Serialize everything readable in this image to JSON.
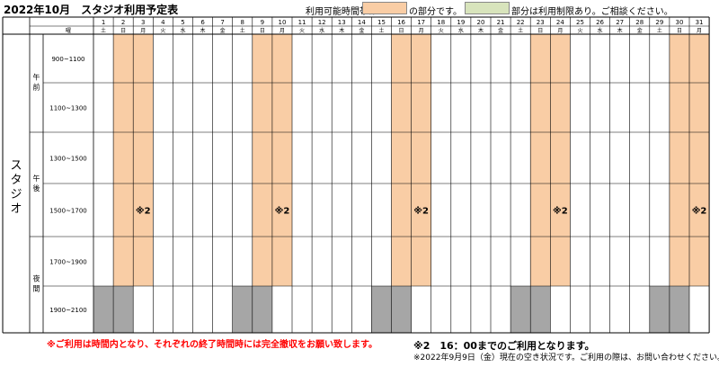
{
  "title": "2022年10月　スタジオ利用予定表",
  "legend": {
    "label_prefix": "利用可能時間帯は",
    "available_text": "の部分です。",
    "restricted_text": "部分は利用制限あり。ご相談ください。",
    "available_color": "#f9cda5",
    "restricted_color": "#d8e4bc"
  },
  "day_header_label": "曜",
  "days": [
    {
      "d": "1",
      "w": "土"
    },
    {
      "d": "2",
      "w": "日"
    },
    {
      "d": "3",
      "w": "月"
    },
    {
      "d": "4",
      "w": "火"
    },
    {
      "d": "5",
      "w": "水"
    },
    {
      "d": "6",
      "w": "木"
    },
    {
      "d": "7",
      "w": "金"
    },
    {
      "d": "8",
      "w": "土"
    },
    {
      "d": "9",
      "w": "日"
    },
    {
      "d": "10",
      "w": "月"
    },
    {
      "d": "11",
      "w": "火"
    },
    {
      "d": "12",
      "w": "水"
    },
    {
      "d": "13",
      "w": "木"
    },
    {
      "d": "14",
      "w": "金"
    },
    {
      "d": "15",
      "w": "土"
    },
    {
      "d": "16",
      "w": "日"
    },
    {
      "d": "17",
      "w": "月"
    },
    {
      "d": "18",
      "w": "火"
    },
    {
      "d": "19",
      "w": "水"
    },
    {
      "d": "20",
      "w": "木"
    },
    {
      "d": "21",
      "w": "金"
    },
    {
      "d": "22",
      "w": "土"
    },
    {
      "d": "23",
      "w": "日"
    },
    {
      "d": "24",
      "w": "月"
    },
    {
      "d": "25",
      "w": "火"
    },
    {
      "d": "26",
      "w": "水"
    },
    {
      "d": "27",
      "w": "木"
    },
    {
      "d": "28",
      "w": "金"
    },
    {
      "d": "29",
      "w": "土"
    },
    {
      "d": "30",
      "w": "日"
    },
    {
      "d": "31",
      "w": "月"
    }
  ],
  "room": "スタジオ",
  "periods": [
    "午前",
    "午後",
    "夜間"
  ],
  "slots": [
    "900~1100",
    "1100~1300",
    "1300~1500",
    "1500~1700",
    "1700~1900",
    "1900~2100"
  ],
  "available_days": [
    "2",
    "3",
    "9",
    "10",
    "16",
    "17",
    "23",
    "24",
    "30",
    "31"
  ],
  "restricted_evening_days": [
    "1",
    "2",
    "8",
    "9",
    "15",
    "16",
    "22",
    "23",
    "29",
    "30"
  ],
  "mark_days": [
    "3",
    "10",
    "17",
    "24",
    "31"
  ],
  "mark_text": "※2",
  "restricted_color_gray": "#a6a6a6",
  "notes": {
    "red": "※ご利用は時間内となり、それぞれの終了時間時には完全撤収をお願い致します。",
    "note2": "※2　16：00までのご利用となります。",
    "status": "※2022年9月9日（金）現在の空き状況です。ご利用の際は、お問い合わせください。"
  }
}
